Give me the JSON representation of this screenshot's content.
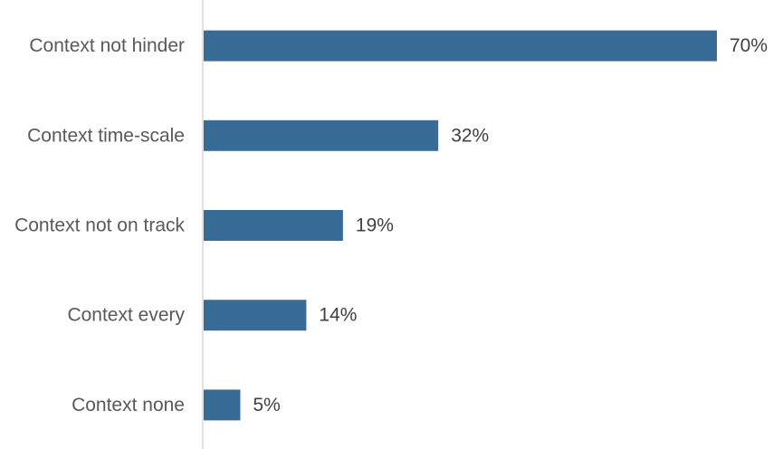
{
  "chart_data": {
    "type": "bar",
    "orientation": "horizontal",
    "categories": [
      "Context not hinder",
      "Context time-scale",
      "Context not on track",
      "Context every",
      "Context none"
    ],
    "values": [
      70,
      32,
      19,
      14,
      5
    ],
    "value_labels": [
      "70%",
      "32%",
      "19%",
      "14%",
      "5%"
    ],
    "unit": "%",
    "title": "",
    "xlabel": "",
    "ylabel": "",
    "xlim": [
      0,
      76
    ],
    "grid": false,
    "legend": "none",
    "bar_color": "#386c97",
    "axis_color": "#d9d9d9"
  }
}
